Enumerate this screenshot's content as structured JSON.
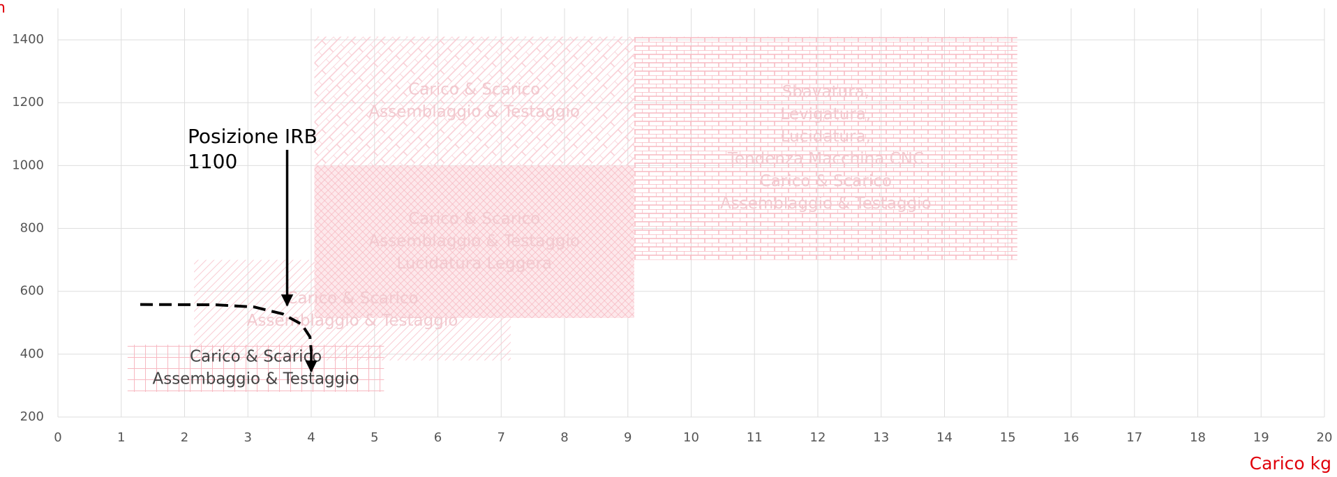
{
  "chart_data": {
    "type": "region",
    "y_label": "n",
    "x_label": "Carico kg",
    "xlim": [
      0,
      20
    ],
    "ylim": [
      200,
      1500
    ],
    "xticks": [
      0,
      1,
      2,
      3,
      4,
      5,
      6,
      7,
      8,
      9,
      10,
      11,
      12,
      13,
      14,
      15,
      16,
      17,
      18,
      19,
      20
    ],
    "yticks": [
      200,
      400,
      600,
      800,
      1000,
      1200,
      1400
    ],
    "grid": true,
    "color": "#f7b0bb",
    "regions": [
      {
        "x": [
          2.15,
          7.15
        ],
        "y": [
          380,
          700
        ],
        "pattern": "diagonal",
        "lines": [
          "Carico & Scarico",
          "Assemblaggio & Testaggio"
        ]
      },
      {
        "x": [
          4.05,
          9.1
        ],
        "y": [
          515,
          1000
        ],
        "pattern": "crosshatch",
        "lines": [
          "Carico & Scarico",
          "Assemblaggio & Testaggio",
          "Lucidatura Leggera"
        ]
      },
      {
        "x": [
          4.05,
          9.1
        ],
        "y": [
          1000,
          1410
        ],
        "pattern": "diagbrick",
        "lines": [
          "Carico & Scarico",
          "Assemblaggio & Testaggio"
        ]
      },
      {
        "x": [
          9.1,
          15.15
        ],
        "y": [
          700,
          1410
        ],
        "pattern": "brick",
        "lines": [
          "Sbavatura,",
          "Levigatura,",
          "Lucidatura,",
          "Tendenza Macchina CNC",
          "Carico & Scarico",
          "Assemblaggio & Testaggio"
        ]
      },
      {
        "x": [
          1.1,
          5.15
        ],
        "y": [
          280,
          430
        ],
        "pattern": "grid",
        "dark": true,
        "lines": [
          "Carico & Scarico",
          "Assembaggio & Testaggio"
        ]
      }
    ],
    "curve": {
      "x": [
        1.3,
        2.5,
        3.1,
        3.55,
        3.85,
        3.98,
        4.0
      ],
      "y": [
        558,
        557,
        550,
        528,
        495,
        455,
        410
      ]
    },
    "arrows": [
      {
        "x": 3.62,
        "y": [
          1050,
          555
        ]
      },
      {
        "x": 4.0,
        "y": [
          415,
          345
        ]
      }
    ],
    "annotation": {
      "x": 2.05,
      "y": 1090,
      "lines": [
        "Posizione IRB",
        "1100"
      ]
    }
  }
}
